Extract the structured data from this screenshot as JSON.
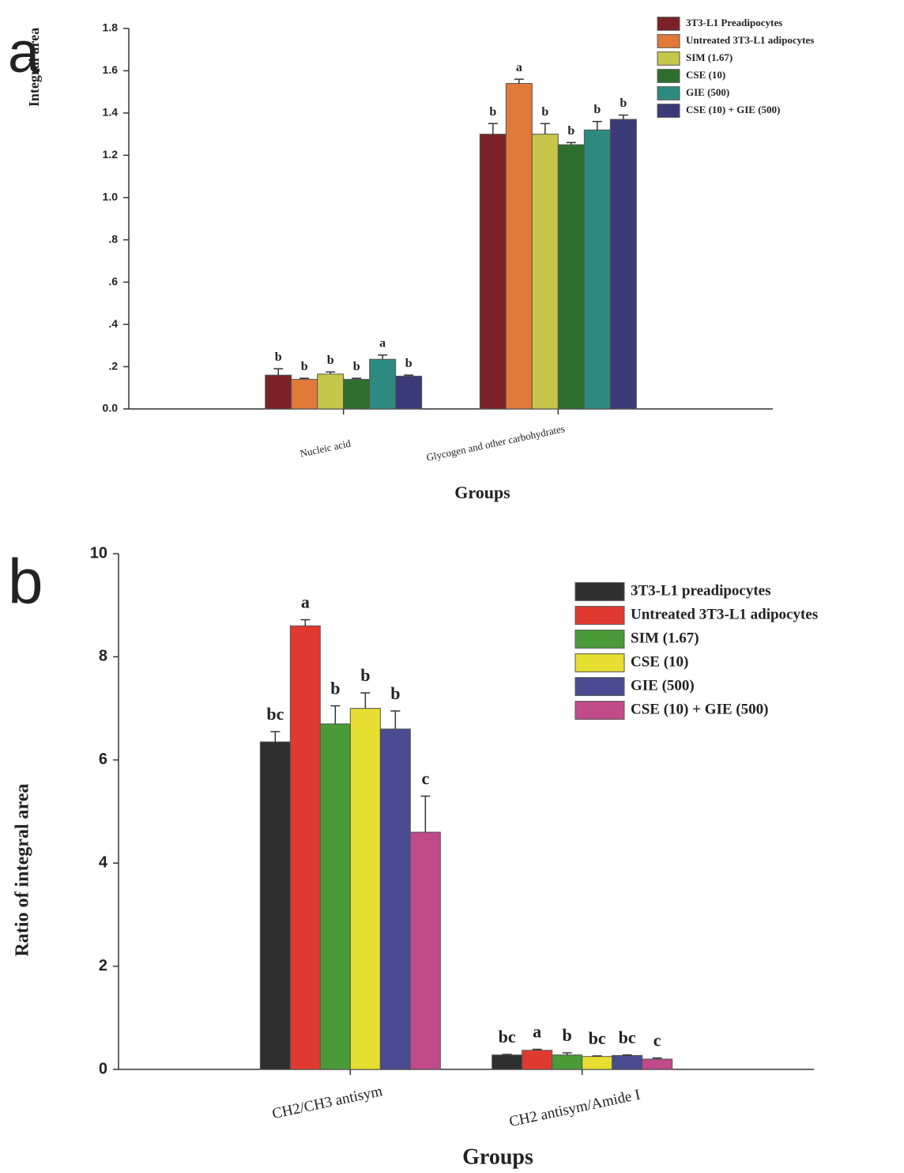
{
  "chart_data": [
    {
      "type": "bar",
      "panel_label": "a",
      "ylabel": "Integral area",
      "xlabel": "Groups",
      "categories": [
        "Nucleic acid",
        "Glycogen and other carbohydrates"
      ],
      "ylim": [
        0,
        1.8
      ],
      "yticks": [
        {
          "value": 0,
          "label": "0.0"
        },
        {
          "value": 0.2,
          "label": ".2"
        },
        {
          "value": 0.4,
          "label": ".4"
        },
        {
          "value": 0.6,
          "label": ".6"
        },
        {
          "value": 0.8,
          "label": ".8"
        },
        {
          "value": 1.0,
          "label": "1.0"
        },
        1.2,
        1.4,
        1.6,
        1.8
      ],
      "series": [
        {
          "name": "3T3-L1 Preadipocytes",
          "color": "#7b2226",
          "values": [
            0.16,
            1.3
          ],
          "errors": [
            0.03,
            0.05
          ],
          "letters": [
            "b",
            "b"
          ]
        },
        {
          "name": "Untreated 3T3-L1 adipocytes",
          "color": "#e0793a",
          "values": [
            0.14,
            1.54
          ],
          "errors": [
            0.005,
            0.02
          ],
          "letters": [
            "b",
            "a"
          ]
        },
        {
          "name": "SIM (1.67)",
          "color": "#c6c64a",
          "values": [
            0.165,
            1.3
          ],
          "errors": [
            0.01,
            0.05
          ],
          "letters": [
            "b",
            "b"
          ]
        },
        {
          "name": "CSE (10)",
          "color": "#2e6e2e",
          "values": [
            0.14,
            1.25
          ],
          "errors": [
            0.005,
            0.01
          ],
          "letters": [
            "b",
            "b"
          ]
        },
        {
          "name": "GIE (500)",
          "color": "#2e8a80",
          "values": [
            0.235,
            1.32
          ],
          "errors": [
            0.02,
            0.04
          ],
          "letters": [
            "a",
            "b"
          ]
        },
        {
          "name": "CSE (10) + GIE (500)",
          "color": "#3a3a78",
          "values": [
            0.155,
            1.37
          ],
          "errors": [
            0.005,
            0.02
          ],
          "letters": [
            "b",
            "b"
          ]
        }
      ]
    },
    {
      "type": "bar",
      "panel_label": "b",
      "ylabel": "Ratio of integral area",
      "xlabel": "Groups",
      "categories": [
        "CH2/CH3 antisym",
        "CH2 antisym/Amide I"
      ],
      "ylim": [
        0,
        10
      ],
      "yticks": [
        0,
        2,
        4,
        6,
        8,
        10
      ],
      "series": [
        {
          "name": "3T3-L1 preadipocytes",
          "color": "#2e2e2e",
          "values": [
            6.35,
            0.28
          ],
          "errors": [
            0.2,
            0.01
          ],
          "letters": [
            "bc",
            "bc"
          ]
        },
        {
          "name": "Untreated 3T3-L1 adipocytes",
          "color": "#e03a30",
          "values": [
            8.6,
            0.37
          ],
          "errors": [
            0.12,
            0.02
          ],
          "letters": [
            "a",
            "a"
          ]
        },
        {
          "name": "SIM (1.67)",
          "color": "#4a9a3a",
          "values": [
            6.7,
            0.28
          ],
          "errors": [
            0.35,
            0.04
          ],
          "letters": [
            "b",
            "b"
          ]
        },
        {
          "name": "CSE (10)",
          "color": "#e6de30",
          "values": [
            7.0,
            0.25
          ],
          "errors": [
            0.3,
            0.01
          ],
          "letters": [
            "b",
            "bc"
          ]
        },
        {
          "name": "GIE (500)",
          "color": "#4a4a90",
          "values": [
            6.6,
            0.27
          ],
          "errors": [
            0.35,
            0.01
          ],
          "letters": [
            "b",
            "bc"
          ]
        },
        {
          "name": "CSE (10) + GIE (500)",
          "color": "#c04a8a",
          "values": [
            4.6,
            0.2
          ],
          "errors": [
            0.7,
            0.02
          ],
          "letters": [
            "c",
            "c"
          ]
        }
      ]
    }
  ]
}
